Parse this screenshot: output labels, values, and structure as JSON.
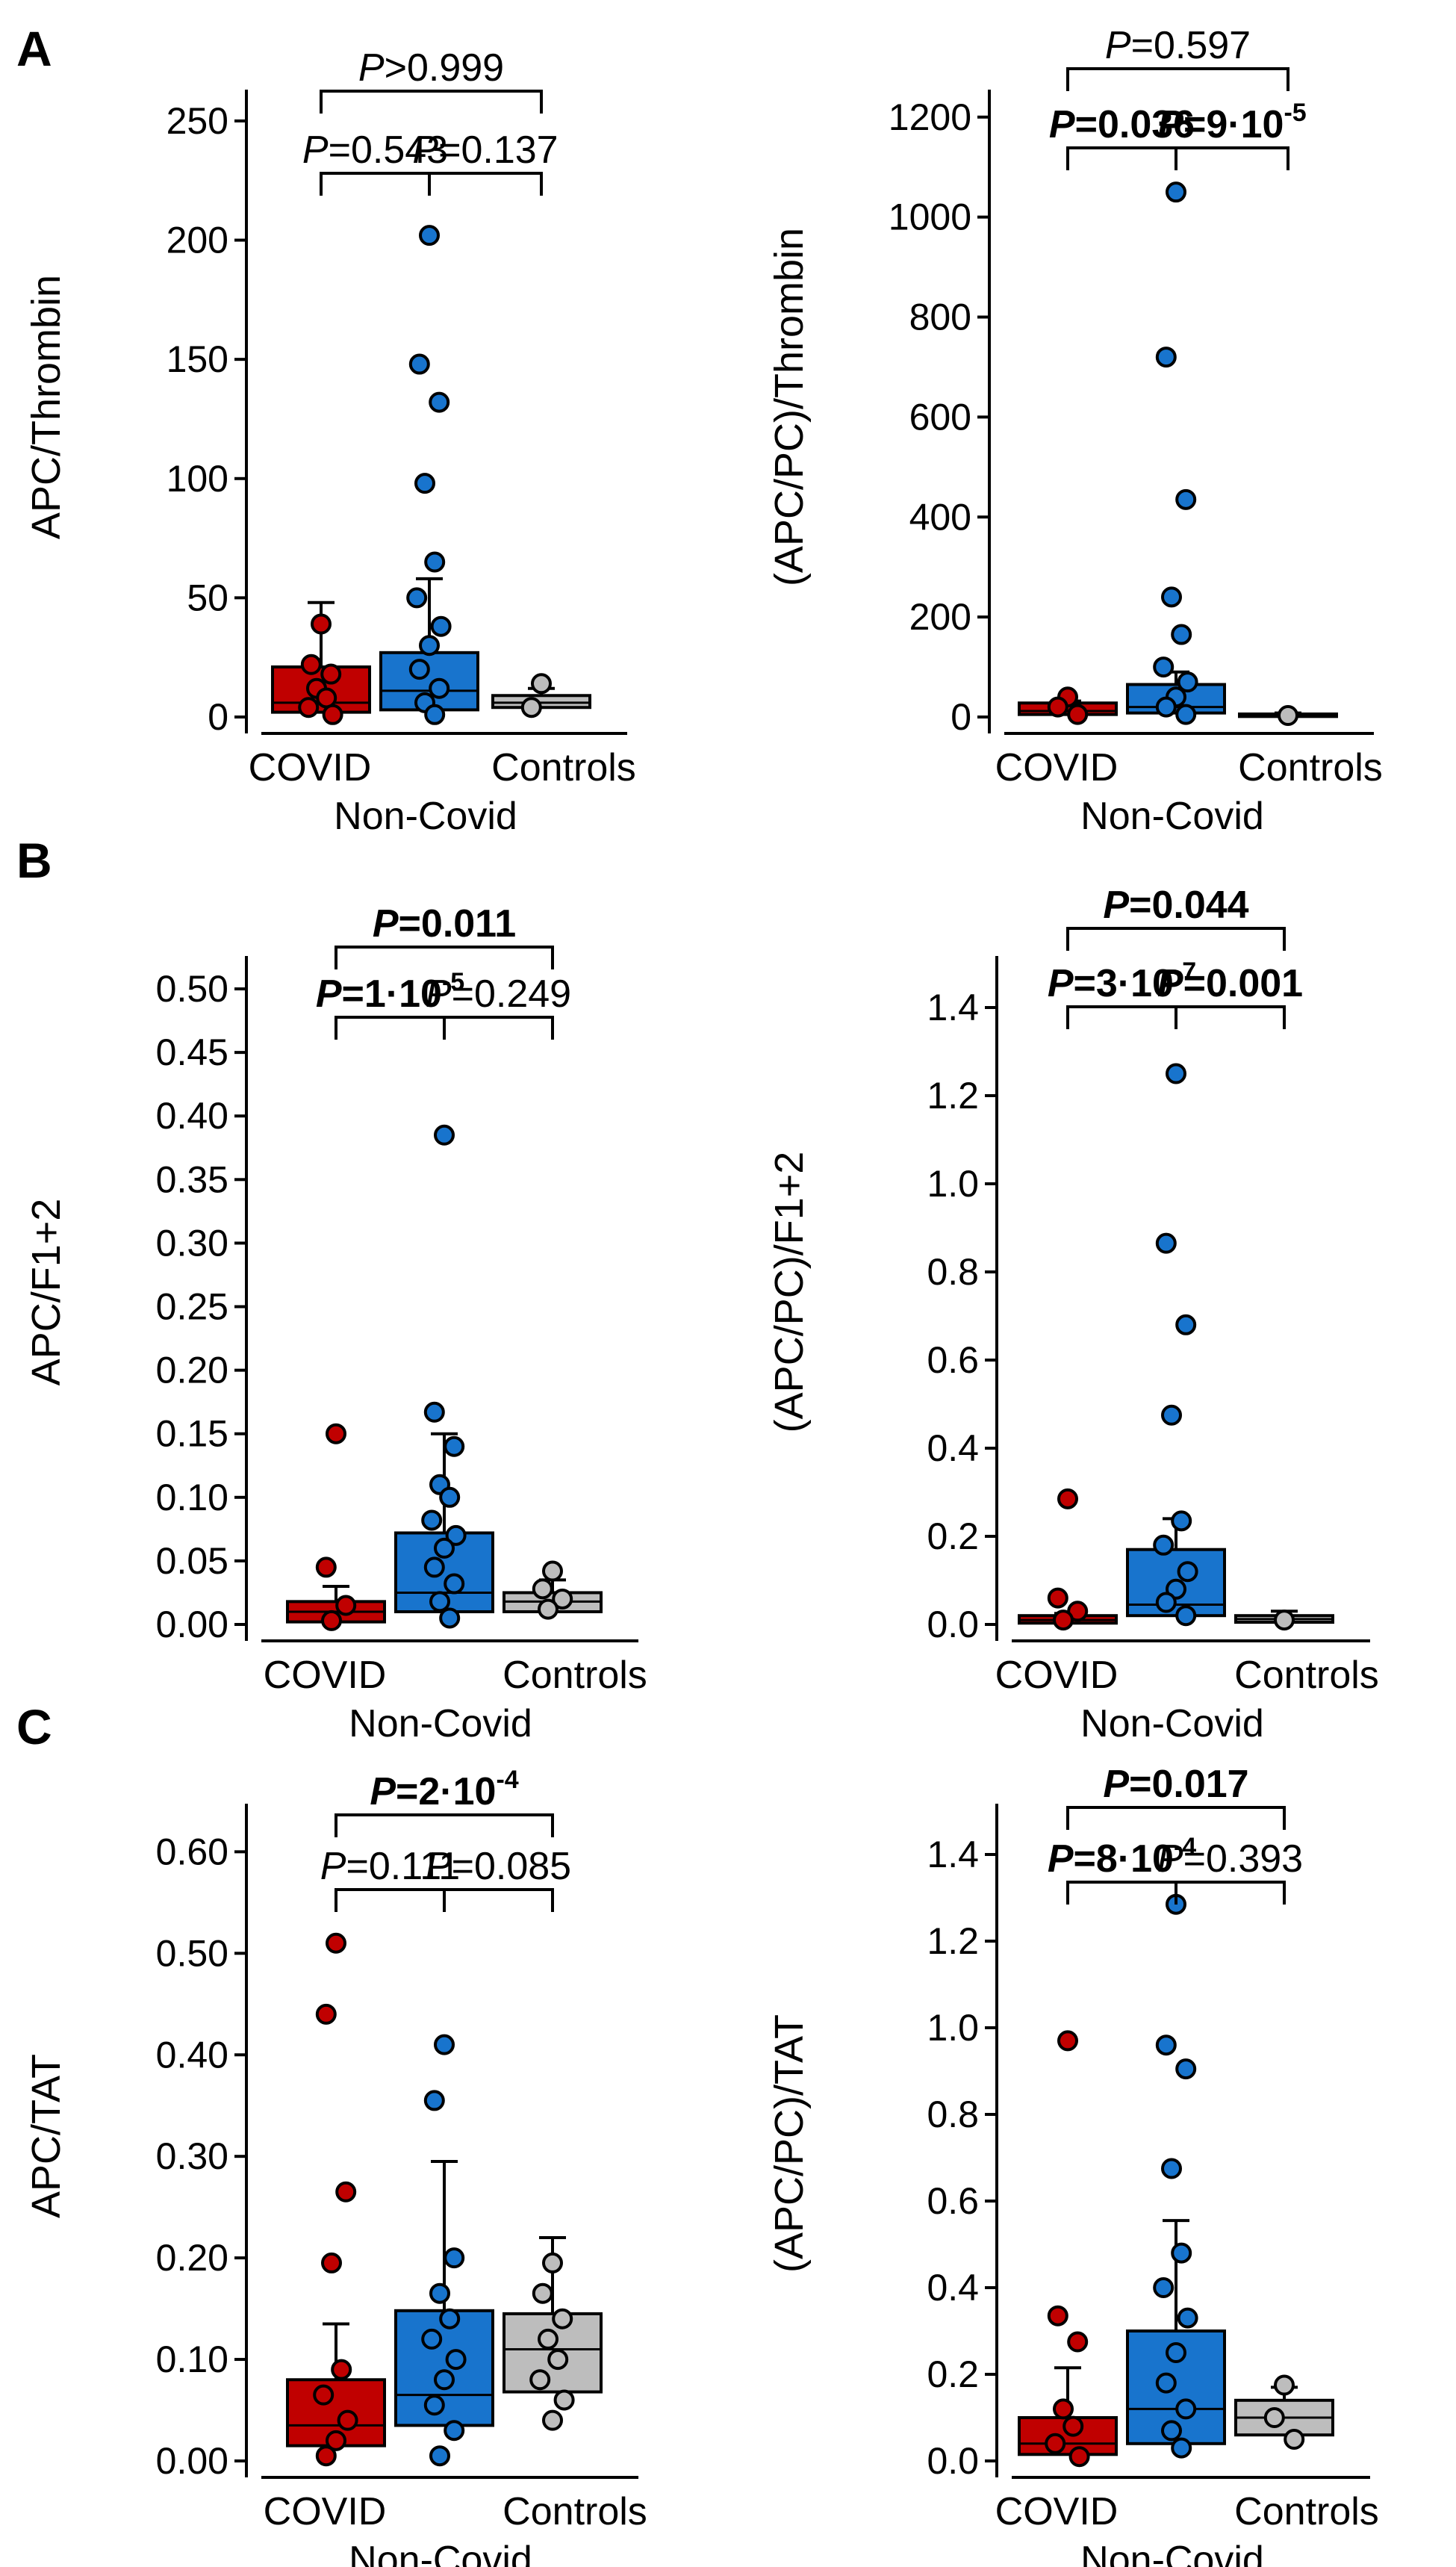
{
  "colors": {
    "covid": "#c00000",
    "noncovid": "#1874cd",
    "controls": "#bdbdbd",
    "axis": "#000000"
  },
  "panel_labels": [
    "A",
    "B",
    "C"
  ],
  "chart_data": [
    {
      "type": "box",
      "panel": "A",
      "title": "",
      "ylabel": "APC/Thrombin",
      "ylim": [
        0,
        260
      ],
      "yticks": [
        "0",
        "50",
        "100",
        "150",
        "200",
        "250"
      ],
      "ytick_values": [
        0,
        50,
        100,
        150,
        200,
        250
      ],
      "categories": [
        "COVID",
        "Non-Covid",
        "Controls"
      ],
      "series": [
        {
          "name": "COVID",
          "q1": 2,
          "median": 6,
          "q3": 21,
          "whisker_low": 0,
          "whisker_high": 48,
          "points": [
            39,
            22,
            18,
            12,
            8,
            4,
            1
          ]
        },
        {
          "name": "Non-Covid",
          "q1": 3,
          "median": 11,
          "q3": 27,
          "whisker_low": 0,
          "whisker_high": 58,
          "points": [
            202,
            148,
            132,
            98,
            65,
            50,
            38,
            30,
            20,
            12,
            6,
            1
          ]
        },
        {
          "name": "Controls",
          "q1": 4,
          "median": 6,
          "q3": 9,
          "whisker_low": 2,
          "whisker_high": 12,
          "points": [
            14,
            4
          ]
        }
      ],
      "annotations": [
        {
          "label": "P",
          "value": ">0.999",
          "from": 0,
          "to": 2,
          "level": 2,
          "bold": false,
          "exp": ""
        },
        {
          "label": "P",
          "value": "=0.543",
          "from": 0,
          "to": 1,
          "level": 1,
          "bold": false,
          "exp": ""
        },
        {
          "label": "P",
          "value": "=0.137",
          "from": 1,
          "to": 2,
          "level": 1,
          "bold": false,
          "exp": ""
        }
      ]
    },
    {
      "type": "box",
      "panel": "A",
      "title": "",
      "ylabel": "(APC/PC)/Thrombin",
      "ylim": [
        0,
        1240
      ],
      "yticks": [
        "0",
        "200",
        "400",
        "600",
        "800",
        "1000",
        "1200"
      ],
      "ytick_values": [
        0,
        200,
        400,
        600,
        800,
        1000,
        1200
      ],
      "categories": [
        "COVID",
        "Non-Covid",
        "Controls"
      ],
      "series": [
        {
          "name": "COVID",
          "q1": 5,
          "median": 12,
          "q3": 28,
          "whisker_low": 0,
          "whisker_high": 32,
          "points": [
            40,
            20,
            5
          ]
        },
        {
          "name": "Non-Covid",
          "q1": 8,
          "median": 20,
          "q3": 65,
          "whisker_low": 0,
          "whisker_high": 90,
          "points": [
            1050,
            720,
            435,
            240,
            165,
            100,
            70,
            40,
            20,
            5
          ]
        },
        {
          "name": "Controls",
          "q1": 1,
          "median": 3,
          "q3": 6,
          "whisker_low": 0,
          "whisker_high": 8,
          "points": [
            3
          ]
        }
      ],
      "annotations": [
        {
          "label": "P",
          "value": "=0.597",
          "from": 0,
          "to": 2,
          "level": 2,
          "bold": false,
          "exp": ""
        },
        {
          "label": "P",
          "value": "=0.036",
          "from": 0,
          "to": 1,
          "level": 1,
          "bold": true,
          "exp": ""
        },
        {
          "label": "P",
          "value": "=9·10",
          "from": 1,
          "to": 2,
          "level": 1,
          "bold": true,
          "exp": "-5"
        }
      ]
    },
    {
      "type": "box",
      "panel": "B",
      "title": "",
      "ylabel": "APC/F1+2",
      "ylim": [
        0,
        0.52
      ],
      "yticks": [
        "0.00",
        "0.05",
        "0.10",
        "0.15",
        "0.20",
        "0.25",
        "0.30",
        "0.35",
        "0.40",
        "0.45",
        "0.50"
      ],
      "ytick_values": [
        0,
        0.05,
        0.1,
        0.15,
        0.2,
        0.25,
        0.3,
        0.35,
        0.4,
        0.45,
        0.5
      ],
      "categories": [
        "COVID",
        "Non-Covid",
        "Controls"
      ],
      "series": [
        {
          "name": "COVID",
          "q1": 0.002,
          "median": 0.01,
          "q3": 0.018,
          "whisker_low": 0,
          "whisker_high": 0.03,
          "points": [
            0.15,
            0.045,
            0.015,
            0.003
          ]
        },
        {
          "name": "Non-Covid",
          "q1": 0.01,
          "median": 0.025,
          "q3": 0.072,
          "whisker_low": 0,
          "whisker_high": 0.15,
          "points": [
            0.385,
            0.167,
            0.14,
            0.11,
            0.1,
            0.082,
            0.07,
            0.06,
            0.045,
            0.032,
            0.018,
            0.005
          ]
        },
        {
          "name": "Controls",
          "q1": 0.01,
          "median": 0.018,
          "q3": 0.025,
          "whisker_low": 0.005,
          "whisker_high": 0.035,
          "points": [
            0.042,
            0.028,
            0.02,
            0.012
          ]
        }
      ],
      "annotations": [
        {
          "label": "P",
          "value": "=0.011",
          "from": 0,
          "to": 2,
          "level": 2,
          "bold": true,
          "exp": ""
        },
        {
          "label": "P",
          "value": "=1·10",
          "from": 0,
          "to": 1,
          "level": 1,
          "bold": true,
          "exp": "-5"
        },
        {
          "label": "P",
          "value": "=0.249",
          "from": 1,
          "to": 2,
          "level": 1,
          "bold": false,
          "exp": ""
        }
      ]
    },
    {
      "type": "box",
      "panel": "B",
      "title": "",
      "ylabel": "(APC/PC)/F1+2",
      "ylim": [
        0,
        1.5
      ],
      "yticks": [
        "0.0",
        "0.2",
        "0.4",
        "0.6",
        "0.8",
        "1.0",
        "1.2",
        "1.4"
      ],
      "ytick_values": [
        0,
        0.2,
        0.4,
        0.6,
        0.8,
        1.0,
        1.2,
        1.4
      ],
      "categories": [
        "COVID",
        "Non-Covid",
        "Controls"
      ],
      "series": [
        {
          "name": "COVID",
          "q1": 0.003,
          "median": 0.01,
          "q3": 0.02,
          "whisker_low": 0,
          "whisker_high": 0.025,
          "points": [
            0.285,
            0.06,
            0.03,
            0.01
          ]
        },
        {
          "name": "Non-Covid",
          "q1": 0.02,
          "median": 0.045,
          "q3": 0.17,
          "whisker_low": 0,
          "whisker_high": 0.24,
          "points": [
            1.25,
            0.865,
            0.68,
            0.475,
            0.235,
            0.18,
            0.12,
            0.08,
            0.05,
            0.02
          ]
        },
        {
          "name": "Controls",
          "q1": 0.005,
          "median": 0.012,
          "q3": 0.02,
          "whisker_low": 0.002,
          "whisker_high": 0.03,
          "points": [
            0.01
          ]
        }
      ],
      "annotations": [
        {
          "label": "P",
          "value": "=0.044",
          "from": 0,
          "to": 2,
          "level": 2,
          "bold": true,
          "exp": ""
        },
        {
          "label": "P",
          "value": "=3·10",
          "from": 0,
          "to": 1,
          "level": 1,
          "bold": true,
          "exp": "-7"
        },
        {
          "label": "P",
          "value": "=0.001",
          "from": 1,
          "to": 2,
          "level": 1,
          "bold": true,
          "exp": ""
        }
      ]
    },
    {
      "type": "box",
      "panel": "C",
      "title": "",
      "ylabel": "APC/TAT",
      "ylim": [
        0,
        0.64
      ],
      "yticks": [
        "0.00",
        "0.10",
        "0.20",
        "0.30",
        "0.40",
        "0.50",
        "0.60"
      ],
      "ytick_values": [
        0,
        0.1,
        0.2,
        0.3,
        0.4,
        0.5,
        0.6
      ],
      "categories": [
        "COVID",
        "Non-Covid",
        "Controls"
      ],
      "series": [
        {
          "name": "COVID",
          "q1": 0.015,
          "median": 0.035,
          "q3": 0.08,
          "whisker_low": 0,
          "whisker_high": 0.135,
          "points": [
            0.51,
            0.44,
            0.265,
            0.195,
            0.09,
            0.065,
            0.04,
            0.02,
            0.005
          ]
        },
        {
          "name": "Non-Covid",
          "q1": 0.035,
          "median": 0.065,
          "q3": 0.148,
          "whisker_low": 0,
          "whisker_high": 0.295,
          "points": [
            0.41,
            0.355,
            0.2,
            0.165,
            0.14,
            0.12,
            0.1,
            0.08,
            0.055,
            0.03,
            0.005
          ]
        },
        {
          "name": "Controls",
          "q1": 0.068,
          "median": 0.11,
          "q3": 0.145,
          "whisker_low": 0.02,
          "whisker_high": 0.22,
          "points": [
            0.195,
            0.165,
            0.14,
            0.12,
            0.1,
            0.08,
            0.06,
            0.04
          ]
        }
      ],
      "annotations": [
        {
          "label": "P",
          "value": "=2·10",
          "from": 0,
          "to": 2,
          "level": 2,
          "bold": true,
          "exp": "-4"
        },
        {
          "label": "P",
          "value": "=0.111",
          "from": 0,
          "to": 1,
          "level": 1,
          "bold": false,
          "exp": ""
        },
        {
          "label": "P",
          "value": "=0.085",
          "from": 1,
          "to": 2,
          "level": 1,
          "bold": false,
          "exp": ""
        }
      ]
    },
    {
      "type": "box",
      "panel": "C",
      "title": "",
      "ylabel": "(APC/PC)/TAT",
      "ylim": [
        0,
        1.5
      ],
      "yticks": [
        "0.0",
        "0.2",
        "0.4",
        "0.6",
        "0.8",
        "1.0",
        "1.2",
        "1.4"
      ],
      "ytick_values": [
        0,
        0.2,
        0.4,
        0.6,
        0.8,
        1.0,
        1.2,
        1.4
      ],
      "categories": [
        "COVID",
        "Non-Covid",
        "Controls"
      ],
      "series": [
        {
          "name": "COVID",
          "q1": 0.015,
          "median": 0.04,
          "q3": 0.1,
          "whisker_low": 0,
          "whisker_high": 0.215,
          "points": [
            0.97,
            0.335,
            0.275,
            0.12,
            0.08,
            0.04,
            0.01
          ]
        },
        {
          "name": "Non-Covid",
          "q1": 0.04,
          "median": 0.12,
          "q3": 0.3,
          "whisker_low": 0,
          "whisker_high": 0.555,
          "points": [
            1.285,
            0.96,
            0.905,
            0.675,
            0.48,
            0.4,
            0.33,
            0.25,
            0.18,
            0.12,
            0.07,
            0.03
          ]
        },
        {
          "name": "Controls",
          "q1": 0.06,
          "median": 0.1,
          "q3": 0.14,
          "whisker_low": 0.04,
          "whisker_high": 0.17,
          "points": [
            0.175,
            0.1,
            0.05
          ]
        }
      ],
      "annotations": [
        {
          "label": "P",
          "value": "=0.017",
          "from": 0,
          "to": 2,
          "level": 2,
          "bold": true,
          "exp": ""
        },
        {
          "label": "P",
          "value": "=8·10",
          "from": 0,
          "to": 1,
          "level": 1,
          "bold": true,
          "exp": "-4"
        },
        {
          "label": "P",
          "value": "=0.393",
          "from": 1,
          "to": 2,
          "level": 1,
          "bold": false,
          "exp": ""
        }
      ]
    }
  ]
}
